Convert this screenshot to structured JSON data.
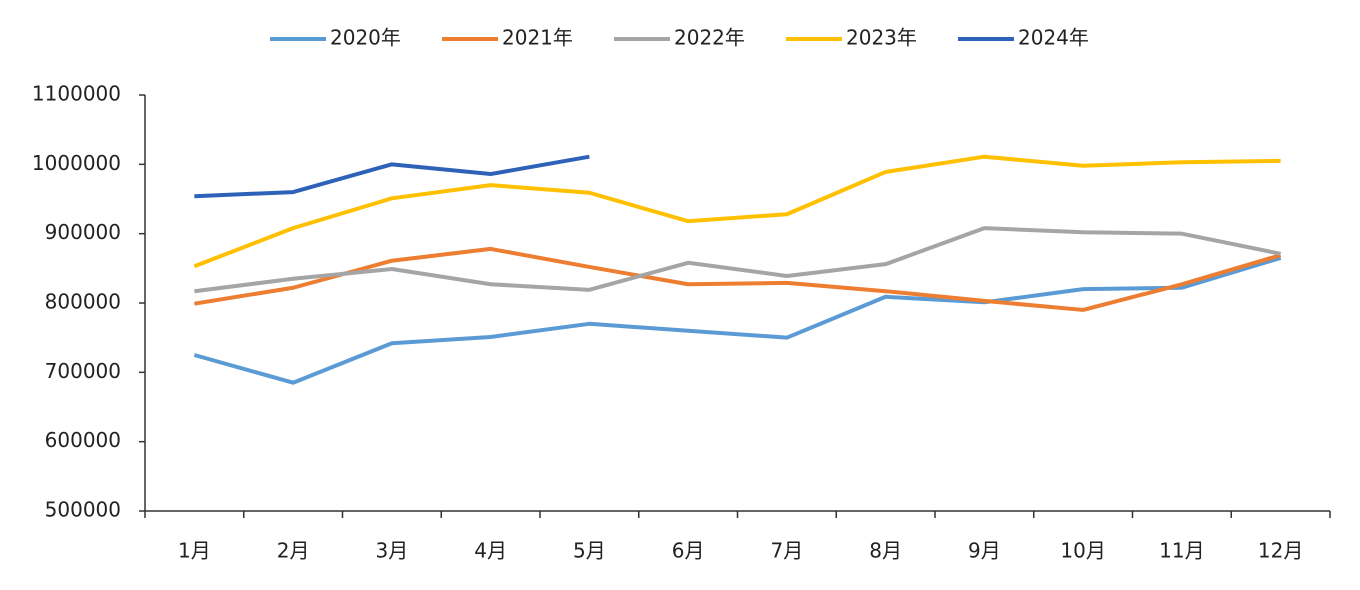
{
  "chart_data": {
    "type": "line",
    "categories": [
      "1月",
      "2月",
      "3月",
      "4月",
      "5月",
      "6月",
      "7月",
      "8月",
      "9月",
      "10月",
      "11月",
      "12月"
    ],
    "series": [
      {
        "name": "2020年",
        "color": "#5b9bd5",
        "values": [
          725000,
          685000,
          742000,
          751000,
          770000,
          760000,
          750000,
          809000,
          801000,
          820000,
          822000,
          865000
        ]
      },
      {
        "name": "2021年",
        "color": "#ed7d31",
        "values": [
          799000,
          822000,
          861000,
          878000,
          852000,
          827000,
          829000,
          817000,
          803000,
          790000,
          827000,
          869000
        ]
      },
      {
        "name": "2022年",
        "color": "#a5a5a5",
        "values": [
          817000,
          835000,
          849000,
          827000,
          819000,
          858000,
          839000,
          856000,
          908000,
          902000,
          900000,
          871000
        ]
      },
      {
        "name": "2023年",
        "color": "#ffc000",
        "values": [
          853000,
          908000,
          951000,
          970000,
          959000,
          918000,
          928000,
          989000,
          1011000,
          998000,
          1003000,
          1005000
        ]
      },
      {
        "name": "2024年",
        "color": "#2e62b8",
        "values": [
          954000,
          960000,
          1000000,
          986000,
          1011000,
          null,
          null,
          null,
          null,
          null,
          null,
          null
        ]
      }
    ],
    "ylim": [
      500000,
      1100000
    ],
    "yticks": [
      500000,
      600000,
      700000,
      800000,
      900000,
      1000000,
      1100000
    ],
    "legend": "top"
  }
}
